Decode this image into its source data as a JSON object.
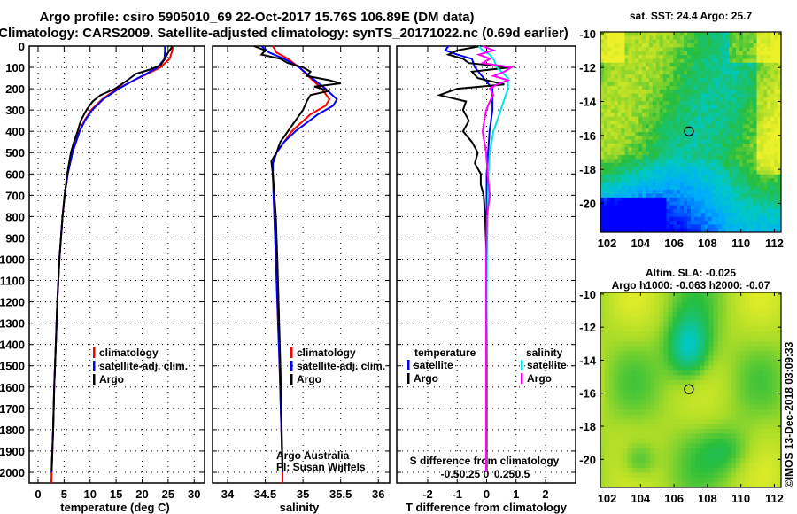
{
  "title_line1": "Argo profile: csiro 5905010_69 22-Oct-2017 15.76S 106.89E (DM data)",
  "title_line2": "Climatology: CARS2009. Satellite-adjusted climatology: synTS_20171022.nc (0.69d earlier)",
  "footer_credit": "©IMOS 13-Dec-2018 03:09:33",
  "colors": {
    "climatology": "#ff0000",
    "satellite": "#0000ff",
    "argo": "#000000",
    "sal_satellite": "#00e5ee",
    "sal_argo": "#ff00ff"
  },
  "chart_data": [
    {
      "type": "line",
      "id": "temperature",
      "xlabel": "temperature (deg C)",
      "ylabel": "",
      "xlim": [
        -1.7,
        32
      ],
      "ylim": [
        2050,
        0
      ],
      "xticks": [
        "0",
        "5",
        "10",
        "15",
        "20",
        "25",
        "30"
      ],
      "yticks": [
        "0",
        "100",
        "200",
        "300",
        "400",
        "500",
        "600",
        "700",
        "800",
        "900",
        "1000",
        "1100",
        "1200",
        "1300",
        "1400",
        "1500",
        "1600",
        "1700",
        "1800",
        "1900",
        "2000"
      ],
      "grid": true,
      "legend": [
        "climatology",
        "satellite-adj. clim.",
        "Argo"
      ],
      "legend_position": "lower-right",
      "series": [
        {
          "name": "climatology",
          "depth": [
            0,
            20,
            60,
            100,
            130,
            160,
            200,
            250,
            300,
            350,
            400,
            500,
            600,
            700,
            800,
            1000,
            1200,
            1400,
            1600,
            1800,
            2000,
            2050
          ],
          "values": [
            25.9,
            25.8,
            25.3,
            23.5,
            21,
            18.5,
            15.2,
            12.3,
            10.2,
            8.9,
            7.9,
            6.6,
            5.7,
            5.1,
            4.7,
            4.1,
            3.7,
            3.4,
            3.1,
            2.9,
            2.6,
            2.55
          ]
        },
        {
          "name": "satellite-adj. clim.",
          "depth": [
            0,
            20,
            60,
            100,
            130,
            160,
            200,
            250,
            300,
            350,
            400,
            500,
            600,
            700,
            800,
            1000,
            1200,
            1400,
            1600,
            1800,
            2000
          ],
          "values": [
            24.4,
            24.4,
            24.3,
            23,
            20.8,
            18.4,
            15.5,
            12.5,
            10.4,
            9.0,
            8.0,
            6.6,
            5.7,
            5.1,
            4.7,
            4.1,
            3.7,
            3.4,
            3.1,
            2.9,
            2.6
          ]
        },
        {
          "name": "Argo",
          "depth": [
            0,
            10,
            30,
            60,
            90,
            110,
            130,
            160,
            200,
            230,
            260,
            300,
            350,
            400,
            450,
            500,
            600,
            700,
            800,
            1000,
            1200,
            1400,
            1600,
            1800,
            1990
          ],
          "values": [
            25.7,
            25.6,
            25.0,
            24.4,
            23.5,
            21.5,
            18.8,
            17.2,
            14.8,
            12.0,
            10.5,
            9.3,
            8.2,
            7.6,
            6.9,
            6.3,
            5.6,
            5.1,
            4.7,
            4.1,
            3.7,
            3.4,
            3.1,
            2.9,
            2.6
          ]
        }
      ]
    },
    {
      "type": "line",
      "id": "salinity",
      "xlabel": "salinity",
      "xlim": [
        33.8,
        36.15
      ],
      "ylim": [
        2050,
        0
      ],
      "xticks": [
        "34",
        "34.5",
        "35",
        "35.5",
        "36"
      ],
      "grid": true,
      "legend": [
        "climatology",
        "satellite-adj. clim.",
        "Argo"
      ],
      "legend_position": "lower-right",
      "annotations": [
        "Argo Australia",
        "PI: Susan Wijffels"
      ],
      "series": [
        {
          "name": "climatology",
          "depth": [
            0,
            30,
            60,
            100,
            150,
            200,
            250,
            280,
            320,
            400,
            450,
            500,
            550,
            600,
            800,
            1000,
            1500,
            2000,
            2050
          ],
          "values": [
            34.6,
            34.65,
            34.8,
            34.95,
            35.1,
            35.25,
            35.35,
            35.3,
            35.1,
            34.85,
            34.75,
            34.65,
            34.6,
            34.6,
            34.62,
            34.64,
            34.69,
            34.73,
            34.73
          ]
        },
        {
          "name": "satellite-adj. clim.",
          "depth": [
            0,
            30,
            60,
            100,
            150,
            200,
            250,
            280,
            320,
            400,
            450,
            500,
            550,
            600,
            800,
            1000,
            1500,
            2000
          ],
          "values": [
            34.45,
            34.55,
            34.75,
            34.95,
            35.12,
            35.3,
            35.45,
            35.4,
            35.2,
            34.9,
            34.75,
            34.65,
            34.6,
            34.6,
            34.62,
            34.64,
            34.69,
            34.73
          ]
        },
        {
          "name": "Argo",
          "depth": [
            0,
            20,
            40,
            60,
            80,
            100,
            120,
            140,
            160,
            175,
            190,
            210,
            230,
            260,
            300,
            350,
            400,
            450,
            500,
            540,
            600,
            700,
            800,
            1000,
            1500,
            1990
          ],
          "values": [
            34.35,
            34.5,
            34.45,
            34.7,
            34.8,
            35.0,
            35.1,
            35.05,
            35.35,
            35.5,
            35.15,
            35.35,
            35.1,
            35.05,
            35.0,
            34.9,
            34.8,
            34.7,
            34.65,
            34.58,
            34.6,
            34.62,
            34.64,
            34.66,
            34.7,
            34.73
          ]
        }
      ]
    },
    {
      "type": "line",
      "id": "difference",
      "xlabel": "T difference from climatology",
      "xlabel2": "S difference from climatology",
      "xlim": [
        -2.98,
        3.1
      ],
      "ylim": [
        2050,
        0
      ],
      "xticks": [
        "-2",
        "-1",
        "0",
        "1",
        "2"
      ],
      "xticks2": [
        "-0.5",
        "-0.25",
        "0",
        "0.25",
        "0.5"
      ],
      "grid": true,
      "legend_titles": [
        "temperature",
        "salinity"
      ],
      "legend": [
        "satellite",
        "Argo",
        "satellite",
        "Argo"
      ],
      "legend_position": "lower",
      "series": [
        {
          "name": "T satellite",
          "depth": [
            0,
            20,
            40,
            60,
            100,
            150,
            200,
            300,
            400,
            500,
            600,
            800,
            1000,
            1500,
            2000
          ],
          "values": [
            -1.3,
            -1.4,
            -1.0,
            -0.5,
            -0.4,
            -0.1,
            0.2,
            0.2,
            0.1,
            0.05,
            0,
            0,
            0,
            0,
            0
          ]
        },
        {
          "name": "T Argo",
          "depth": [
            0,
            20,
            40,
            60,
            80,
            100,
            120,
            150,
            180,
            200,
            230,
            260,
            300,
            350,
            400,
            450,
            500,
            550,
            600,
            650,
            700,
            800,
            1000,
            1500,
            2000
          ],
          "values": [
            -0.2,
            -1.0,
            -1.3,
            -0.8,
            -0.6,
            0.8,
            -0.5,
            -0.3,
            0.6,
            -1.0,
            -1.6,
            -0.7,
            -0.8,
            -0.6,
            -0.8,
            -0.5,
            -0.3,
            -0.4,
            -0.2,
            -0.2,
            -0.1,
            -0.05,
            0,
            0,
            0
          ]
        },
        {
          "name": "S satellite",
          "depth": [
            0,
            20,
            40,
            60,
            100,
            150,
            200,
            250,
            300,
            400,
            500,
            600,
            800,
            1000,
            1500,
            2000
          ],
          "values": [
            -0.1,
            -0.05,
            0.05,
            0.1,
            0.15,
            0.3,
            0.3,
            0.25,
            0.2,
            0.1,
            0.05,
            0.03,
            0.02,
            0.01,
            0,
            0
          ]
        },
        {
          "name": "S Argo",
          "depth": [
            0,
            20,
            40,
            60,
            80,
            100,
            120,
            140,
            160,
            180,
            200,
            230,
            260,
            300,
            400,
            500,
            600,
            700,
            800,
            1000,
            1500,
            2000
          ],
          "values": [
            -0.05,
            0.1,
            -0.1,
            0.05,
            -0.05,
            0.35,
            0.25,
            0.1,
            0.3,
            0.15,
            0.05,
            0.1,
            0.05,
            0,
            -0.05,
            0,
            0.02,
            0.05,
            0.01,
            0,
            0,
            0
          ]
        }
      ]
    },
    {
      "type": "heatmap",
      "id": "sst-map",
      "title": "sat. SST: 24.4 Argo: 25.7",
      "xlim": [
        101.6,
        112.4
      ],
      "ylim": [
        -21.7,
        -9.9
      ],
      "xticks": [
        "102",
        "104",
        "106",
        "108",
        "110",
        "112"
      ],
      "yticks": [
        "-10",
        "-12",
        "-14",
        "-16",
        "-18",
        "-20"
      ],
      "marker": {
        "lon": 106.89,
        "lat": -15.76
      }
    },
    {
      "type": "heatmap",
      "id": "sla-map",
      "title": "Altim. SLA: -0.025",
      "subtitle": "Argo h1000: -0.063 h2000: -0.07",
      "xlim": [
        101.6,
        112.4
      ],
      "ylim": [
        -21.7,
        -9.9
      ],
      "xticks": [
        "102",
        "104",
        "106",
        "108",
        "110",
        "112"
      ],
      "yticks": [
        "-10",
        "-12",
        "-14",
        "-16",
        "-18",
        "-20"
      ],
      "marker": {
        "lon": 106.89,
        "lat": -15.76
      }
    }
  ]
}
